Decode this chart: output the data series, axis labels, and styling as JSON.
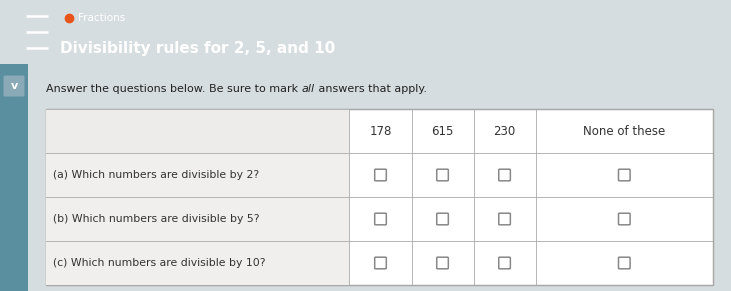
{
  "title_topic": "Fractions",
  "title_main": "Divisibility rules for 2, 5, and 10",
  "header_bg": "#22AABF",
  "header_text_color": "#ffffff",
  "body_bg": "#d6dde0",
  "table_bg": "#ffffff",
  "col_headers": [
    "178",
    "615",
    "230",
    "None of these"
  ],
  "row_labels": [
    "(a) Which numbers are divisible by 2?",
    "(b) Which numbers are divisible by 5?",
    "(c) Which numbers are divisible by 10?"
  ],
  "orange_dot_color": "#E8541A",
  "chevron_bg": "#8aaab8",
  "chevron_color": "#3a6070",
  "left_strip_color": "#5a8fa0",
  "figsize": [
    7.31,
    2.91
  ],
  "dpi": 100
}
